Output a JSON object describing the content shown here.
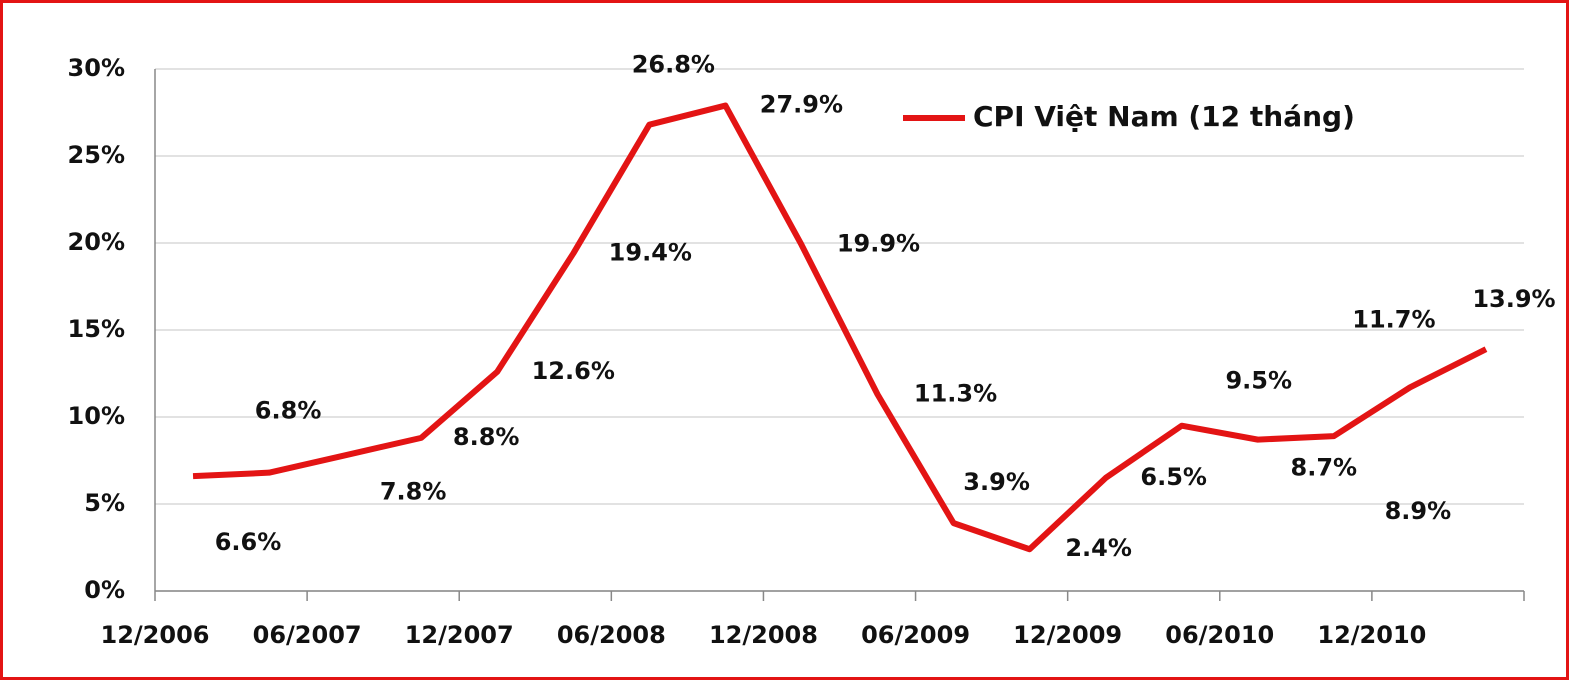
{
  "chart_data": {
    "type": "line",
    "categories": [
      "12/2006",
      null,
      "06/2007",
      null,
      "12/2007",
      null,
      "06/2008",
      null,
      "12/2008",
      null,
      "06/2009",
      null,
      "12/2009",
      null,
      "06/2010",
      null,
      "12/2010",
      null
    ],
    "series": [
      {
        "name": "CPI Việt Nam (12 tháng)",
        "color": "#e31414",
        "values": [
          6.6,
          6.8,
          7.8,
          8.8,
          12.6,
          19.4,
          26.8,
          27.9,
          19.9,
          11.3,
          3.9,
          2.4,
          6.5,
          9.5,
          8.7,
          8.9,
          11.7,
          13.9
        ],
        "value_labels": [
          "6.6%",
          "6.8%",
          "7.8%",
          "8.8%",
          "12.6%",
          "19.4%",
          "26.8%",
          "27.9%",
          "19.9%",
          "11.3%",
          "3.9%",
          "2.4%",
          "6.5%",
          "9.5%",
          "8.7%",
          "8.9%",
          "11.7%",
          "13.9%"
        ]
      }
    ],
    "ylim": [
      0,
      30
    ],
    "yticks": [
      {
        "value": 0,
        "label": "0%"
      },
      {
        "value": 5,
        "label": "5%"
      },
      {
        "value": 10,
        "label": "10%"
      },
      {
        "value": 15,
        "label": "15%"
      },
      {
        "value": 20,
        "label": "20%"
      },
      {
        "value": 25,
        "label": "25%"
      },
      {
        "value": 30,
        "label": "30%"
      }
    ],
    "grid": true,
    "legend": "top-right"
  }
}
